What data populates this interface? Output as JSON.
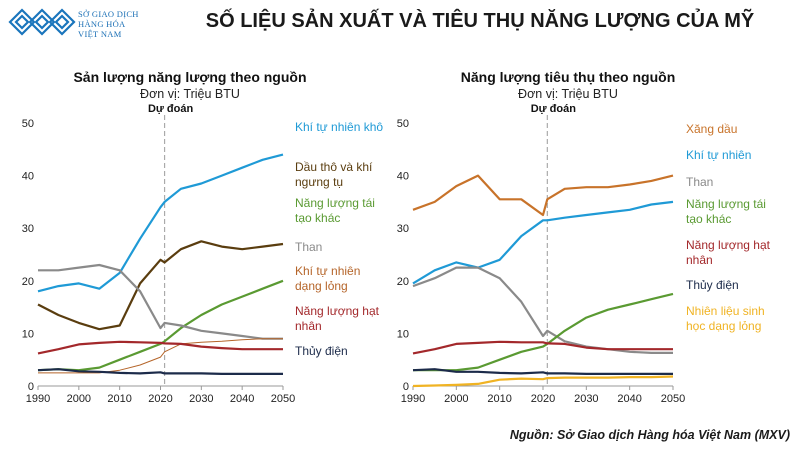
{
  "header": {
    "logo_lines": [
      "SỞ GIAO DỊCH",
      "HÀNG HÓA",
      "VIỆT NAM"
    ],
    "title": "SỐ LIỆU SẢN XUẤT VÀ TIÊU THỤ NĂNG LƯỢNG CỦA MỸ"
  },
  "footer": {
    "source": "Nguồn: Sở Giao dịch Hàng hóa Việt Nam (MXV)"
  },
  "chart_data": [
    {
      "type": "line",
      "title": "Sản lượng năng lượng theo nguồn",
      "subtitle": "Đơn vị: Triệu BTU",
      "forecast_label": "Dự đoán",
      "forecast_start": 2021,
      "x": [
        1990,
        1995,
        2000,
        2005,
        2010,
        2015,
        2020,
        2021,
        2025,
        2030,
        2035,
        2040,
        2045,
        2050
      ],
      "xlim": [
        1990,
        2050
      ],
      "xticks": [
        1990,
        2000,
        2010,
        2020,
        2030,
        2040,
        2050
      ],
      "ylim": [
        0,
        50
      ],
      "yticks": [
        0,
        10,
        20,
        30,
        40,
        50
      ],
      "series": [
        {
          "name": "Khí tự nhiên khô",
          "color": "#1f9ad6",
          "values": [
            18,
            19,
            19.5,
            18.5,
            21.5,
            28,
            34,
            35,
            37.5,
            38.5,
            40,
            41.5,
            43,
            44
          ]
        },
        {
          "name": "Dầu thô và khí ngưng tụ",
          "color": "#5a3d0f",
          "values": [
            15.5,
            13.5,
            12,
            10.8,
            11.5,
            19.5,
            24,
            23.5,
            26,
            27.5,
            26.5,
            26,
            26.5,
            27
          ]
        },
        {
          "name": "Năng lượng tái tạo khác",
          "color": "#5a9a32",
          "values": [
            3,
            3.2,
            3,
            3.5,
            5,
            6.5,
            8,
            8.5,
            11,
            13.5,
            15.5,
            17,
            18.5,
            20
          ]
        },
        {
          "name": "Than",
          "color": "#8a8a8a",
          "values": [
            22,
            22,
            22.5,
            23,
            22,
            18,
            11,
            12,
            11.5,
            10.5,
            10,
            9.5,
            9,
            9
          ]
        },
        {
          "name": "Khí tự nhiên dạng lỏng",
          "color": "#b5652a",
          "values": [
            2.5,
            2.5,
            2.5,
            2.5,
            3,
            4,
            5.5,
            6.5,
            8,
            8.3,
            8.5,
            8.8,
            9,
            9
          ]
        },
        {
          "name": "Năng lượng hạt nhân",
          "color": "#a3282b",
          "values": [
            6.2,
            7,
            7.9,
            8.2,
            8.4,
            8.3,
            8.2,
            8.1,
            8,
            7.5,
            7.2,
            7,
            7,
            7
          ]
        },
        {
          "name": "Thủy điện",
          "color": "#1c2b4a",
          "values": [
            3,
            3.2,
            2.8,
            2.7,
            2.5,
            2.4,
            2.6,
            2.4,
            2.4,
            2.4,
            2.3,
            2.3,
            2.3,
            2.3
          ]
        }
      ]
    },
    {
      "type": "line",
      "title": "Năng lượng tiêu thụ theo nguồn",
      "subtitle": "Đơn vị: Triệu BTU",
      "forecast_label": "Dự đoán",
      "forecast_start": 2021,
      "x": [
        1990,
        1995,
        2000,
        2005,
        2010,
        2015,
        2020,
        2021,
        2025,
        2030,
        2035,
        2040,
        2045,
        2050
      ],
      "xlim": [
        1990,
        2050
      ],
      "xticks": [
        1990,
        2000,
        2010,
        2020,
        2030,
        2040,
        2050
      ],
      "ylim": [
        0,
        50
      ],
      "yticks": [
        0,
        10,
        20,
        30,
        40,
        50
      ],
      "series": [
        {
          "name": "Xăng dầu",
          "color": "#c8732a",
          "values": [
            33.5,
            35,
            38,
            40,
            35.5,
            35.5,
            32.5,
            35.5,
            37.5,
            37.8,
            37.8,
            38.3,
            39,
            40
          ]
        },
        {
          "name": "Khí tự nhiên",
          "color": "#1f9ad6",
          "values": [
            19.5,
            22,
            23.5,
            22.5,
            24,
            28.5,
            31.5,
            31.5,
            32,
            32.5,
            33,
            33.5,
            34.5,
            35
          ]
        },
        {
          "name": "Than",
          "color": "#8a8a8a",
          "values": [
            19,
            20.5,
            22.5,
            22.5,
            20.5,
            16,
            9.5,
            10.5,
            8.5,
            7.5,
            7,
            6.5,
            6.3,
            6.3
          ]
        },
        {
          "name": "Năng lượng tái tạo khác",
          "color": "#5a9a32",
          "values": [
            3,
            3,
            3,
            3.5,
            5,
            6.5,
            7.5,
            8,
            10.5,
            13,
            14.5,
            15.5,
            16.5,
            17.5
          ]
        },
        {
          "name": "Năng lượng hạt nhân",
          "color": "#a3282b",
          "values": [
            6.2,
            7,
            8,
            8.2,
            8.4,
            8.3,
            8.3,
            8.1,
            8,
            7.3,
            7,
            7,
            7,
            7
          ]
        },
        {
          "name": "Thủy điện",
          "color": "#1c2b4a",
          "values": [
            3,
            3.2,
            2.7,
            2.7,
            2.5,
            2.4,
            2.6,
            2.4,
            2.4,
            2.3,
            2.3,
            2.3,
            2.3,
            2.3
          ]
        },
        {
          "name": "Nhiên liệu sinh học dạng lỏng",
          "color": "#f0b323",
          "values": [
            0,
            0.1,
            0.2,
            0.4,
            1.2,
            1.4,
            1.3,
            1.5,
            1.6,
            1.6,
            1.6,
            1.7,
            1.7,
            1.8
          ]
        }
      ]
    }
  ]
}
